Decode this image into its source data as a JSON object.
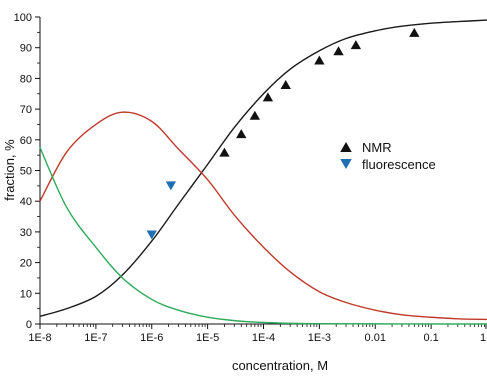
{
  "chart_data": {
    "type": "scatter",
    "title": "",
    "xlabel": "concentration, M",
    "ylabel": "fraction, %",
    "x_scale": "log",
    "xlim": [
      1e-08,
      1
    ],
    "ylim": [
      0,
      100
    ],
    "x_ticks": [
      {
        "value": 1e-08,
        "label": "1E-8"
      },
      {
        "value": 1e-07,
        "label": "1E-7"
      },
      {
        "value": 1e-06,
        "label": "1E-6"
      },
      {
        "value": 1e-05,
        "label": "1E-5"
      },
      {
        "value": 0.0001,
        "label": "1E-4"
      },
      {
        "value": 0.001,
        "label": "1E-3"
      },
      {
        "value": 0.01,
        "label": "0.01"
      },
      {
        "value": 0.1,
        "label": "0.1"
      },
      {
        "value": 1,
        "label": "1"
      }
    ],
    "y_ticks": [
      0,
      10,
      20,
      30,
      40,
      50,
      60,
      70,
      80,
      90,
      100
    ],
    "grid": false,
    "legend_position": "right-middle",
    "series": [
      {
        "name": "NMR",
        "kind": "points",
        "marker": "triangle-up",
        "color": "#111111",
        "points": [
          {
            "x": 2e-05,
            "y": 56
          },
          {
            "x": 4e-05,
            "y": 62
          },
          {
            "x": 7e-05,
            "y": 68
          },
          {
            "x": 0.00012,
            "y": 74
          },
          {
            "x": 0.00025,
            "y": 78
          },
          {
            "x": 0.001,
            "y": 86
          },
          {
            "x": 0.0022,
            "y": 89
          },
          {
            "x": 0.0045,
            "y": 91
          },
          {
            "x": 0.05,
            "y": 95
          }
        ]
      },
      {
        "name": "fluorescence",
        "kind": "points",
        "marker": "triangle-down",
        "color": "#1f6fb5",
        "points": [
          {
            "x": 1e-06,
            "y": 29
          },
          {
            "x": 2.2e-06,
            "y": 45
          }
        ]
      },
      {
        "kind": "line",
        "color": "#1a1a1a",
        "points": [
          {
            "x": 1e-08,
            "y": 2.5
          },
          {
            "x": 3e-08,
            "y": 5
          },
          {
            "x": 1e-07,
            "y": 9
          },
          {
            "x": 3e-07,
            "y": 16
          },
          {
            "x": 1e-06,
            "y": 27
          },
          {
            "x": 3e-06,
            "y": 39
          },
          {
            "x": 1e-05,
            "y": 52
          },
          {
            "x": 3e-05,
            "y": 64
          },
          {
            "x": 0.0001,
            "y": 75
          },
          {
            "x": 0.0003,
            "y": 83
          },
          {
            "x": 0.001,
            "y": 89
          },
          {
            "x": 0.003,
            "y": 93
          },
          {
            "x": 0.01,
            "y": 95.5
          },
          {
            "x": 0.03,
            "y": 97
          },
          {
            "x": 0.1,
            "y": 98
          },
          {
            "x": 0.3,
            "y": 98.5
          },
          {
            "x": 1,
            "y": 99
          }
        ]
      },
      {
        "kind": "line",
        "color": "#c0392b",
        "points": [
          {
            "x": 1e-08,
            "y": 40
          },
          {
            "x": 3e-08,
            "y": 56
          },
          {
            "x": 1e-07,
            "y": 65
          },
          {
            "x": 3e-07,
            "y": 69
          },
          {
            "x": 1e-06,
            "y": 66
          },
          {
            "x": 3e-06,
            "y": 57
          },
          {
            "x": 1e-05,
            "y": 47
          },
          {
            "x": 3e-05,
            "y": 35.5
          },
          {
            "x": 0.0001,
            "y": 25
          },
          {
            "x": 0.0003,
            "y": 17
          },
          {
            "x": 0.001,
            "y": 10.5
          },
          {
            "x": 0.003,
            "y": 7
          },
          {
            "x": 0.01,
            "y": 4.5
          },
          {
            "x": 0.03,
            "y": 3
          },
          {
            "x": 0.1,
            "y": 2.2
          },
          {
            "x": 0.3,
            "y": 1.7
          },
          {
            "x": 1,
            "y": 1.5
          }
        ]
      },
      {
        "kind": "line",
        "color": "#2eaa5a",
        "points": [
          {
            "x": 1e-08,
            "y": 57.5
          },
          {
            "x": 3e-08,
            "y": 38
          },
          {
            "x": 1e-07,
            "y": 25
          },
          {
            "x": 3e-07,
            "y": 15
          },
          {
            "x": 1e-06,
            "y": 8
          },
          {
            "x": 3e-06,
            "y": 4.5
          },
          {
            "x": 1e-05,
            "y": 2.2
          },
          {
            "x": 3e-05,
            "y": 1.1
          },
          {
            "x": 0.0001,
            "y": 0.5
          },
          {
            "x": 0.001,
            "y": 0.1
          },
          {
            "x": 1,
            "y": 0
          }
        ]
      }
    ]
  }
}
